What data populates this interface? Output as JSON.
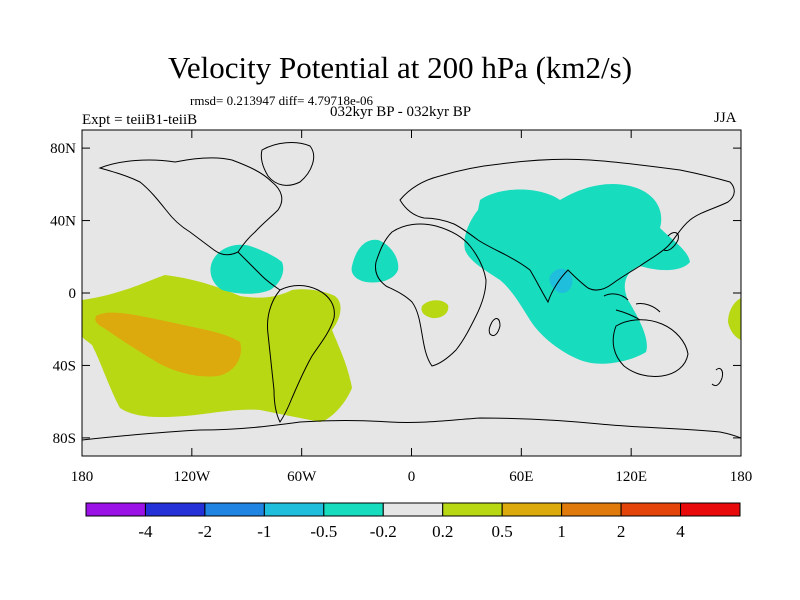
{
  "title": "Velocity Potential at 200 hPa (km2/s)",
  "stats": "rmsd= 0.213947 diff= 4.79718e-06",
  "left_label": "Expt = teiiB1-teiiB",
  "center_label": "032kyr BP - 032kyr BP",
  "right_label": "JJA",
  "map": {
    "lat_ticks": [
      "80N",
      "40N",
      "0",
      "40S",
      "80S"
    ],
    "lon_ticks": [
      "180",
      "120W",
      "60W",
      "0",
      "60E",
      "120E",
      "180"
    ],
    "background_color": "#e6e6e6"
  },
  "colorbar": {
    "labels": [
      "-4",
      "-2",
      "-1",
      "-0.5",
      "-0.2",
      "0.2",
      "0.5",
      "1",
      "2",
      "4"
    ],
    "colors": [
      "#9a12e6",
      "#2430d8",
      "#1f84e2",
      "#1fbedc",
      "#17dcbe",
      "#e6e6e6",
      "#b8d814",
      "#dcaa0c",
      "#e07a0a",
      "#e4440a",
      "#e80a0a"
    ]
  },
  "chart_data": {
    "type": "contour-map",
    "variable": "Velocity Potential at 200 hPa",
    "units": "km2/s",
    "levels": [
      -4,
      -2,
      -1,
      -0.5,
      -0.2,
      0.2,
      0.5,
      1,
      2,
      4
    ],
    "lon_range": [
      -180,
      180
    ],
    "lat_range": [
      -90,
      90
    ],
    "features": [
      {
        "sign": "negative",
        "class": "-0.5 to -0.2",
        "region": "Asia / North Africa / Indian Ocean"
      },
      {
        "sign": "negative",
        "class": "-1 to -0.5",
        "region": "India"
      },
      {
        "sign": "negative",
        "class": "-0.5 to -0.2",
        "region": "Central America / Caribbean"
      },
      {
        "sign": "negative",
        "class": "-0.5 to -0.2",
        "region": "West Africa"
      },
      {
        "sign": "positive",
        "class": "0.2 to 0.5",
        "region": "South-east Pacific / South America / South Atlantic"
      },
      {
        "sign": "positive",
        "class": "0.5 to 1",
        "region": "South-east Pacific"
      },
      {
        "sign": "positive",
        "class": "0.2 to 0.5",
        "region": "Gulf of Guinea"
      },
      {
        "sign": "positive",
        "class": "0.2 to 0.5",
        "region": "Western Pacific (date line)"
      }
    ]
  }
}
